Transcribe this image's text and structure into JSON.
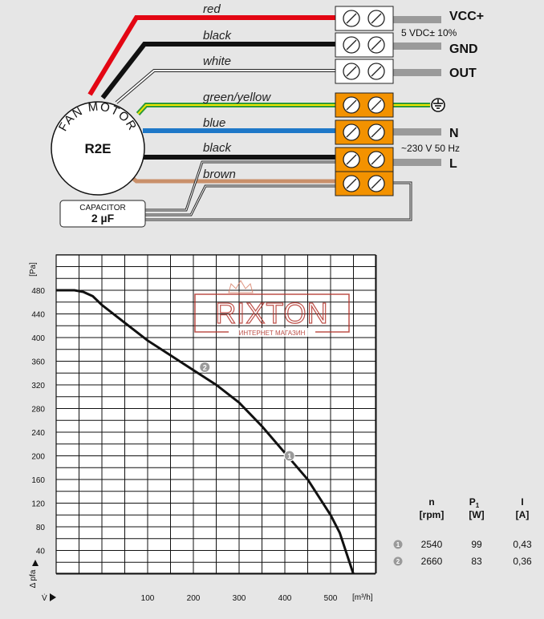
{
  "wiring": {
    "motor_label": "FAN MOTOR",
    "motor_model": "R2E",
    "capacitor_label": "CAPACITOR",
    "capacitor_value": "2 µF",
    "wires": [
      "red",
      "black",
      "white",
      "green/yellow",
      "blue",
      "black",
      "brown"
    ],
    "terminals": {
      "vcc": "VCC+",
      "vcc_note": "5 VDC± 10%",
      "gnd": "GND",
      "out": "OUT",
      "n": "N",
      "mains_note": "~230 V 50 Hz",
      "l": "L",
      "ground_symbol": "earth-ground-icon"
    },
    "colors": {
      "red": "#e30613",
      "black": "#111111",
      "white": "#ffffff",
      "green": "#2e9a3a",
      "yellow": "#f2e600",
      "blue": "#1e78c8",
      "brown": "#c9906a",
      "terminal_orange": "#f39200",
      "signal_gray": "#9a9a9a"
    }
  },
  "watermark": {
    "brand": "RIXTON",
    "subtitle": "ИНТЕРНЕТ МАГАЗИН",
    "color": "#b3322a"
  },
  "chart_data": {
    "type": "line",
    "ylabel_unit": "[Pa]",
    "ylabel_symbol": "Δ pfa",
    "xlabel_symbol": "V̇",
    "xunit": "[m³/h]",
    "xlim": [
      -100,
      600
    ],
    "ylim": [
      0,
      480
    ],
    "yticks": [
      40,
      80,
      120,
      160,
      200,
      240,
      280,
      320,
      360,
      400,
      440,
      480
    ],
    "xticks": [
      100,
      200,
      300,
      400,
      500
    ],
    "grid": true,
    "curve": {
      "x": [
        -100,
        -60,
        -40,
        -20,
        0,
        50,
        100,
        150,
        200,
        250,
        300,
        350,
        400,
        450,
        500,
        520,
        550
      ],
      "y": [
        480,
        480,
        477,
        470,
        455,
        425,
        395,
        370,
        345,
        320,
        290,
        250,
        205,
        160,
        100,
        70,
        0
      ]
    },
    "operating_points": [
      {
        "id": "1",
        "x": 410,
        "y": 200
      },
      {
        "id": "2",
        "x": 225,
        "y": 350
      }
    ],
    "line_color": "#111111"
  },
  "table": {
    "headers": [
      {
        "name": "n",
        "unit": "[rpm]"
      },
      {
        "name": "P1",
        "unit": "[W]"
      },
      {
        "name": "I",
        "unit": "[A]"
      }
    ],
    "rows": [
      {
        "id": "1",
        "n": "2540",
        "p": "99",
        "i": "0,43"
      },
      {
        "id": "2",
        "n": "2660",
        "p": "83",
        "i": "0,36"
      }
    ]
  }
}
